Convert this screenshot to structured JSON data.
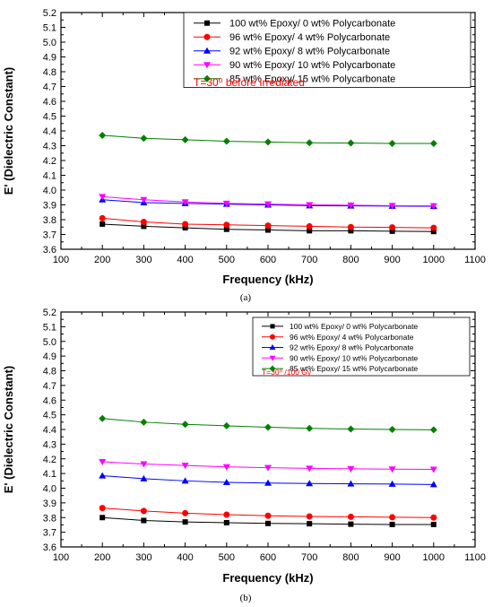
{
  "chart_data": [
    {
      "type": "line",
      "caption": "(a)",
      "xlabel": "Frequency (kHz)",
      "ylabel": "E' (Dielectric Constant)",
      "xlim": [
        100,
        1100
      ],
      "ylim": [
        3.6,
        5.2
      ],
      "x_ticks": [
        "100",
        "200",
        "300",
        "400",
        "500",
        "600",
        "700",
        "800",
        "900",
        "1000",
        "1100"
      ],
      "y_ticks": [
        "3.6",
        "3.7",
        "3.8",
        "3.9",
        "4.0",
        "4.1",
        "4.2",
        "4.3",
        "4.4",
        "4.5",
        "4.6",
        "4.7",
        "4.8",
        "4.9",
        "5.0",
        "5.1",
        "5.2"
      ],
      "x": [
        200,
        300,
        400,
        500,
        600,
        700,
        800,
        900,
        1000
      ],
      "legend_position": "top-right",
      "annotation": "T=30⁰ before Irrediated",
      "annotation_color": "#ff0000",
      "series": [
        {
          "name": "100 wt% Epoxy/ 0 wt% Polycarbonate",
          "color": "#000000",
          "marker": "square",
          "values": [
            3.77,
            3.755,
            3.745,
            3.735,
            3.73,
            3.725,
            3.725,
            3.722,
            3.72
          ]
        },
        {
          "name": "96 wt% Epoxy/ 4 wt% Polycarbonate",
          "color": "#ff0000",
          "marker": "circle",
          "values": [
            3.81,
            3.785,
            3.77,
            3.765,
            3.76,
            3.755,
            3.75,
            3.748,
            3.745
          ]
        },
        {
          "name": "92 wt% Epoxy/ 8 wt% Polycarbonate",
          "color": "#0000ff",
          "marker": "triangle-up",
          "values": [
            3.935,
            3.915,
            3.91,
            3.905,
            3.9,
            3.895,
            3.893,
            3.892,
            3.89
          ]
        },
        {
          "name": "90 wt% Epoxy/ 10 wt% Polycarbonate",
          "color": "#ff00ff",
          "marker": "triangle-down",
          "values": [
            3.955,
            3.935,
            3.92,
            3.91,
            3.905,
            3.9,
            3.898,
            3.895,
            3.893
          ]
        },
        {
          "name": "85 wt% Epoxy/ 15 wt% Polycarbonate",
          "color": "#008000",
          "marker": "diamond",
          "values": [
            4.37,
            4.35,
            4.34,
            4.33,
            4.325,
            4.32,
            4.318,
            4.315,
            4.315
          ]
        }
      ]
    },
    {
      "type": "line",
      "caption": "(b)",
      "xlabel": "Frequency (kHz)",
      "ylabel": "E' (Dielectric Constant)",
      "xlim": [
        100,
        1100
      ],
      "ylim": [
        3.6,
        5.2
      ],
      "x_ticks": [
        "100",
        "200",
        "300",
        "400",
        "500",
        "600",
        "700",
        "800",
        "900",
        "1000",
        "1100"
      ],
      "y_ticks": [
        "3.6",
        "3.7",
        "3.8",
        "3.9",
        "4.0",
        "4.1",
        "4.2",
        "4.3",
        "4.4",
        "4.5",
        "4.6",
        "4.7",
        "4.8",
        "4.9",
        "5.0",
        "5.1",
        "5.2"
      ],
      "x": [
        200,
        300,
        400,
        500,
        600,
        700,
        800,
        900,
        1000
      ],
      "legend_position": "top-right",
      "annotation": "T=30⁰ /100 Gy",
      "annotation_color": "#ff0000",
      "series": [
        {
          "name": "100 wt% Epoxy/ 0 wt% Polycarbonate",
          "color": "#000000",
          "marker": "square",
          "values": [
            3.8,
            3.78,
            3.77,
            3.765,
            3.76,
            3.758,
            3.755,
            3.753,
            3.753
          ]
        },
        {
          "name": "96 wt% Epoxy/ 4 wt% Polycarbonate",
          "color": "#ff0000",
          "marker": "circle",
          "values": [
            3.865,
            3.845,
            3.83,
            3.82,
            3.812,
            3.808,
            3.805,
            3.802,
            3.8
          ]
        },
        {
          "name": "92 wt% Epoxy/ 8 wt% Polycarbonate",
          "color": "#0000ff",
          "marker": "triangle-up",
          "values": [
            4.085,
            4.065,
            4.05,
            4.04,
            4.035,
            4.032,
            4.03,
            4.028,
            4.025
          ]
        },
        {
          "name": "90 wt% Epoxy/ 10 wt% Polycarbonate",
          "color": "#ff00ff",
          "marker": "triangle-down",
          "values": [
            4.18,
            4.165,
            4.155,
            4.145,
            4.14,
            4.135,
            4.132,
            4.13,
            4.128
          ]
        },
        {
          "name": "85 wt% Epoxy/ 15 wt% Polycarbonate",
          "color": "#008000",
          "marker": "diamond",
          "values": [
            4.475,
            4.45,
            4.435,
            4.425,
            4.415,
            4.408,
            4.403,
            4.4,
            4.398
          ]
        }
      ]
    }
  ]
}
